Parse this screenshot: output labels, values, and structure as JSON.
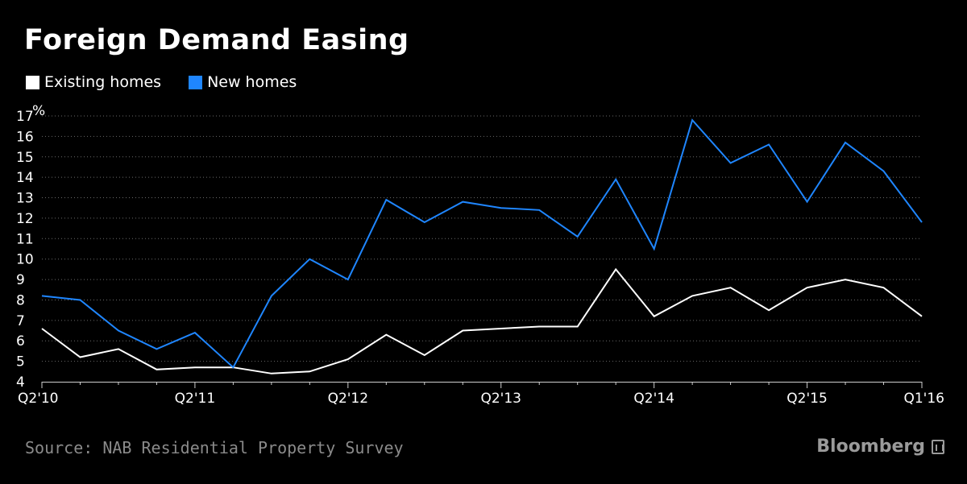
{
  "title": "Foreign Demand Easing",
  "source": "Source: NAB Residential Property Survey",
  "brand": "Bloomberg",
  "chart_data": {
    "type": "line",
    "title": "Foreign Demand Easing",
    "xlabel": "",
    "ylabel": "",
    "y_unit": "%",
    "ylim": [
      4,
      17
    ],
    "yticks": [
      4,
      5,
      6,
      7,
      8,
      9,
      10,
      11,
      12,
      13,
      14,
      15,
      16,
      17
    ],
    "grid": true,
    "legend_position": "top-left",
    "x": [
      "Q2'10",
      "Q3'10",
      "Q4'10",
      "Q1'11",
      "Q2'11",
      "Q3'11",
      "Q4'11",
      "Q1'12",
      "Q2'12",
      "Q3'12",
      "Q4'12",
      "Q1'13",
      "Q2'13",
      "Q3'13",
      "Q4'13",
      "Q1'14",
      "Q2'14",
      "Q3'14",
      "Q4'14",
      "Q1'15",
      "Q2'15",
      "Q3'15",
      "Q4'15",
      "Q1'16"
    ],
    "xtick_labels": [
      "Q2'10",
      "Q2'11",
      "Q2'12",
      "Q2'13",
      "Q2'14",
      "Q2'15",
      "Q1'16"
    ],
    "series": [
      {
        "name": "Existing homes",
        "color": "#ffffff",
        "values": [
          6.6,
          5.2,
          5.6,
          4.6,
          4.7,
          4.7,
          4.4,
          4.5,
          5.1,
          6.3,
          5.3,
          6.5,
          6.6,
          6.7,
          6.7,
          9.5,
          7.2,
          8.2,
          8.6,
          7.5,
          8.6,
          9.0,
          8.6,
          7.2
        ]
      },
      {
        "name": "New homes",
        "color": "#1f86ff",
        "values": [
          8.2,
          8.0,
          6.5,
          5.6,
          6.4,
          4.7,
          8.2,
          10.0,
          9.0,
          12.9,
          11.8,
          12.8,
          12.5,
          12.4,
          11.1,
          13.9,
          10.5,
          16.8,
          14.7,
          15.6,
          12.8,
          15.7,
          14.3,
          11.8
        ]
      }
    ]
  }
}
